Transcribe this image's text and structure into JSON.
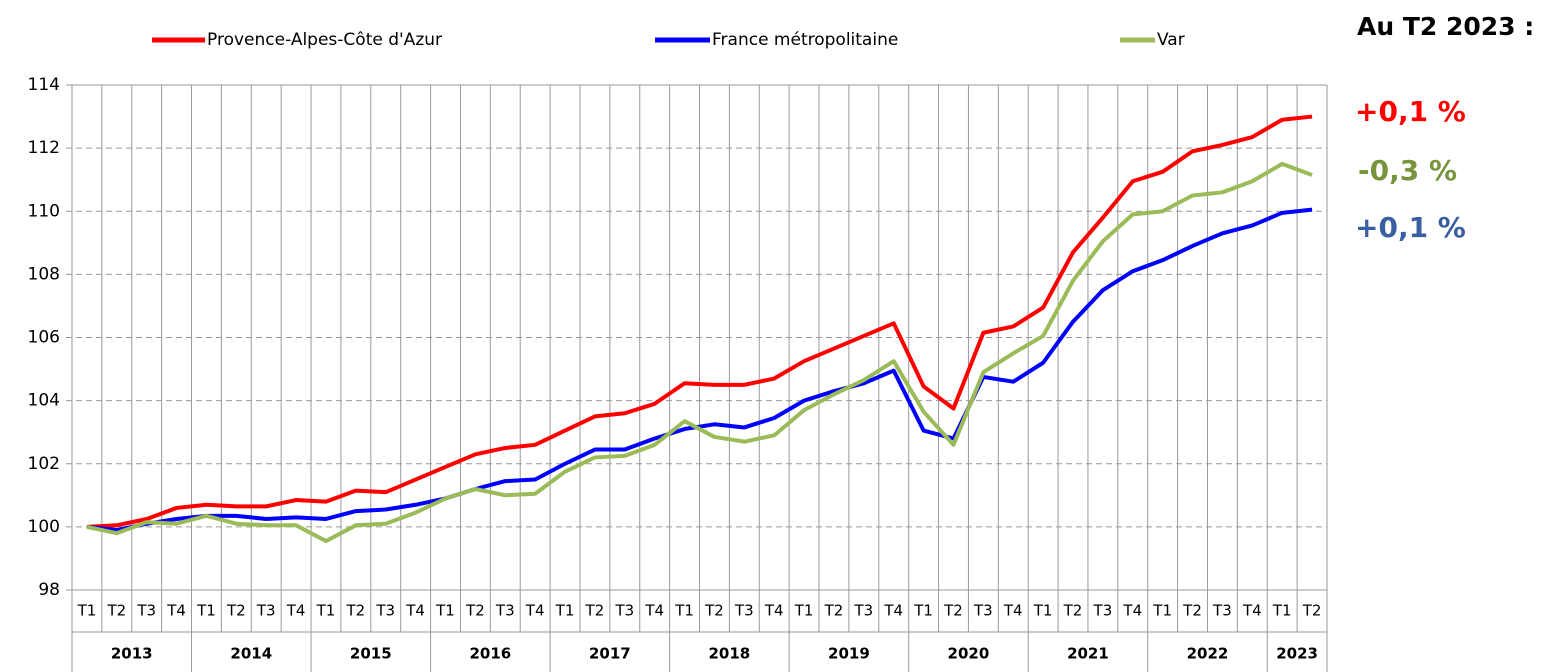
{
  "chart_data": {
    "type": "line",
    "categories": [
      "T1",
      "T2",
      "T3",
      "T4",
      "T1",
      "T2",
      "T3",
      "T4",
      "T1",
      "T2",
      "T3",
      "T4",
      "T1",
      "T2",
      "T3",
      "T4",
      "T1",
      "T2",
      "T3",
      "T4",
      "T1",
      "T2",
      "T3",
      "T4",
      "T1",
      "T2",
      "T3",
      "T4",
      "T1",
      "T2",
      "T3",
      "T4",
      "T1",
      "T2",
      "T3",
      "T4",
      "T1",
      "T2",
      "T3",
      "T4",
      "T1",
      "T2"
    ],
    "category_groups": [
      "2013",
      "2014",
      "2015",
      "2016",
      "2017",
      "2018",
      "2019",
      "2020",
      "2021",
      "2022",
      "2023"
    ],
    "series": [
      {
        "name": "Provence-Alpes-Côte d'Azur",
        "color": "#ff0000",
        "values": [
          100,
          100.05,
          100.25,
          100.6,
          100.7,
          100.65,
          100.65,
          100.85,
          100.8,
          101.15,
          101.1,
          101.5,
          101.9,
          102.3,
          102.5,
          102.6,
          103.05,
          103.5,
          103.6,
          103.9,
          104.55,
          104.5,
          104.5,
          104.7,
          105.25,
          105.65,
          106.05,
          106.45,
          104.45,
          103.75,
          106.15,
          106.35,
          106.95,
          108.7,
          109.8,
          110.95,
          111.25,
          111.9,
          112.1,
          112.35,
          112.9,
          113.0
        ]
      },
      {
        "name": "France métropolitaine",
        "color": "#0000ff",
        "values": [
          100,
          99.9,
          100.1,
          100.25,
          100.35,
          100.35,
          100.25,
          100.3,
          100.25,
          100.5,
          100.55,
          100.7,
          100.9,
          101.2,
          101.45,
          101.5,
          102.0,
          102.45,
          102.45,
          102.8,
          103.1,
          103.25,
          103.15,
          103.45,
          104.0,
          104.3,
          104.55,
          104.95,
          103.05,
          102.8,
          104.75,
          104.6,
          105.2,
          106.5,
          107.5,
          108.1,
          108.45,
          108.9,
          109.3,
          109.55,
          109.95,
          110.05
        ]
      },
      {
        "name": "Var",
        "color": "#9bbb59",
        "values": [
          100,
          99.8,
          100.15,
          100.1,
          100.35,
          100.1,
          100.05,
          100.05,
          99.55,
          100.05,
          100.1,
          100.45,
          100.9,
          101.2,
          101.0,
          101.05,
          101.75,
          102.2,
          102.25,
          102.6,
          103.35,
          102.85,
          102.7,
          102.9,
          103.7,
          104.2,
          104.65,
          105.25,
          103.65,
          102.6,
          104.9,
          105.5,
          106.05,
          107.8,
          109.05,
          109.9,
          110.0,
          110.5,
          110.6,
          110.95,
          111.5,
          111.15
        ]
      }
    ],
    "ylim": [
      98,
      114
    ],
    "yticks": [
      98,
      100,
      102,
      104,
      106,
      108,
      110,
      112,
      114
    ],
    "grid": true,
    "legend": "top",
    "annotations": [
      {
        "text": "Au T2 2023 :",
        "color": "#000000"
      },
      {
        "text": "+0,1 %",
        "color": "#ff0000"
      },
      {
        "text": "-0,3 %",
        "color": "#77933c"
      },
      {
        "text": "+0,1 %",
        "color": "#3a5fa0"
      }
    ]
  }
}
